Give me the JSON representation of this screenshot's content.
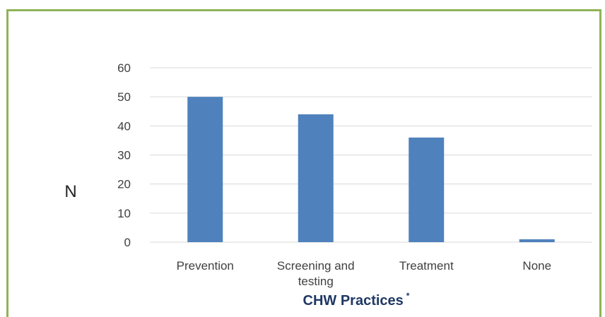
{
  "chart_data": {
    "type": "bar",
    "categories": [
      "Prevention",
      "Screening and testing",
      "Treatment",
      "None"
    ],
    "category_lines": [
      [
        "Prevention"
      ],
      [
        "Screening and",
        "testing"
      ],
      [
        "Treatment"
      ],
      [
        "None"
      ]
    ],
    "values": [
      50,
      44,
      36,
      1
    ],
    "ylabel": "N",
    "xlabel": "CHW Practices",
    "xlabel_superscript": "*",
    "ylim": [
      0,
      60
    ],
    "yticks": [
      0,
      10,
      20,
      30,
      40,
      50,
      60
    ],
    "grid": true,
    "legend": "none",
    "bar_color": "#4f81bd",
    "grid_color": "#d9d9d9",
    "frame_color": "#8fb359"
  }
}
